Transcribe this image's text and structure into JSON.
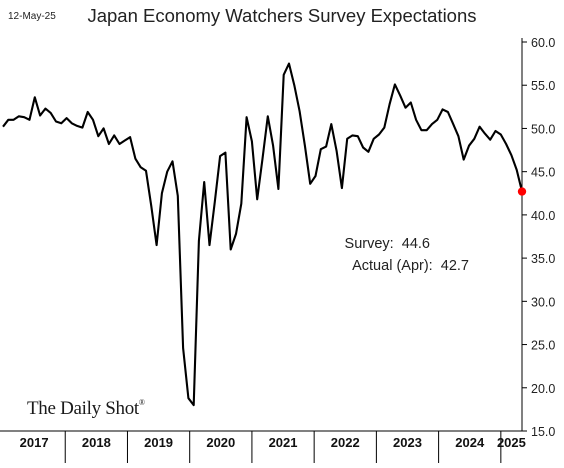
{
  "header": {
    "date": "12-May-25",
    "title": "Japan Economy Watchers Survey Expectations"
  },
  "annotation": {
    "survey_label": "Survey:",
    "survey_value": "44.6",
    "actual_label": "Actual (Apr):",
    "actual_value": "42.7"
  },
  "brand": {
    "name": "The Daily Shot",
    "mark": "®"
  },
  "colors": {
    "line": "#000000",
    "highlight": "#ff0000",
    "axis": "#000000"
  },
  "chart_data": {
    "type": "line",
    "title": "Japan Economy Watchers Survey Expectations",
    "xlabel": "",
    "ylabel": "",
    "ylim": [
      15,
      60
    ],
    "y_ticks": [
      "15.0",
      "20.0",
      "25.0",
      "30.0",
      "35.0",
      "40.0",
      "45.0",
      "50.0",
      "55.0",
      "60.0"
    ],
    "x_ticks": [
      "2017",
      "2018",
      "2019",
      "2020",
      "2021",
      "2022",
      "2023",
      "2024",
      "2025"
    ],
    "grid": false,
    "x_start": 2017.0,
    "x_end": 2025.34,
    "series": [
      {
        "values": [
          50.2,
          51.0,
          51.0,
          51.4,
          51.3,
          51.0,
          53.6,
          51.5,
          52.3,
          51.8,
          50.8,
          50.6,
          51.2,
          50.6,
          50.3,
          50.1,
          51.9,
          51.0,
          49.1,
          50.0,
          48.2,
          49.2,
          48.2,
          48.6,
          49.0,
          46.5,
          45.5,
          45.1,
          41.0,
          36.5,
          42.5,
          45.0,
          46.2,
          42.2,
          24.6,
          18.8,
          18.0,
          37.0,
          43.8,
          36.5,
          41.5,
          46.8,
          47.2,
          36.0,
          37.8,
          41.3,
          51.3,
          48.5,
          41.8,
          46.5,
          51.4,
          48.0,
          43.0,
          56.2,
          57.5,
          55.0,
          52.0,
          48.0,
          43.6,
          44.5,
          47.6,
          47.9,
          50.5,
          47.4,
          43.1,
          48.8,
          49.2,
          49.1,
          47.8,
          47.3,
          48.8,
          49.3,
          50.1,
          52.8,
          55.1,
          53.8,
          52.4,
          53.0,
          51.0,
          49.8,
          49.8,
          50.5,
          51.0,
          52.2,
          51.9,
          50.5,
          49.1,
          46.4,
          48.0,
          48.8,
          50.2,
          49.4,
          48.7,
          49.7,
          49.3,
          48.2,
          46.9,
          45.2,
          42.7
        ]
      }
    ],
    "highlight": {
      "label": "Actual (Apr)",
      "value": 42.7,
      "x": "Apr 2025"
    }
  }
}
